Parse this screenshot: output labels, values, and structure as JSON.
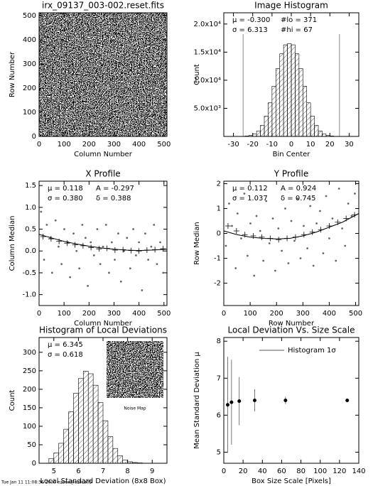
{
  "chart_data": [
    {
      "type": "image",
      "title": "irx_09137_003-002.reset.fits",
      "xlabel": "Column Number",
      "ylabel": "Row Number",
      "xlim": [
        0,
        512
      ],
      "ylim": [
        0,
        512
      ],
      "xticks": [
        0,
        100,
        200,
        300,
        400,
        500
      ],
      "yticks": [
        0,
        100,
        200,
        300,
        400,
        500
      ]
    },
    {
      "type": "histogram",
      "title": "Image Histogram",
      "xlabel": "Bin Center",
      "ylabel": "Count",
      "annotations": [
        "μ = -0.300",
        "#lo = 371",
        "σ = 6.313",
        "#hi = 67"
      ],
      "xlim": [
        -35,
        35
      ],
      "ylim": [
        0,
        22000
      ],
      "xticks": [
        -30,
        -20,
        -10,
        0,
        10,
        20,
        30
      ],
      "yticks": [
        {
          "value": 5000,
          "label": "5.0x10³"
        },
        {
          "value": 10000,
          "label": "1.0x10⁴"
        },
        {
          "value": 15000,
          "label": "1.5x10⁴"
        },
        {
          "value": 20000,
          "label": "2.0x10⁴"
        }
      ],
      "bins": [
        -32,
        -30,
        -28,
        -26,
        -24,
        -22,
        -20,
        -18,
        -16,
        -14,
        -12,
        -10,
        -8,
        -6,
        -4,
        -2,
        0,
        2,
        4,
        6,
        8,
        10,
        12,
        14,
        16,
        18,
        20,
        22,
        24,
        26,
        28,
        30,
        32
      ],
      "values": [
        0,
        1,
        5,
        20,
        70,
        180,
        440,
        980,
        1990,
        3620,
        5980,
        8930,
        12060,
        14700,
        16300,
        16500,
        16300,
        14700,
        12060,
        8930,
        5980,
        3620,
        1990,
        980,
        440,
        180,
        70,
        20,
        5,
        1,
        0,
        0
      ],
      "vlines": [
        -25,
        25
      ]
    },
    {
      "type": "scatter",
      "title": "X Profile",
      "xlabel": "Column Number",
      "ylabel": "Column Median",
      "annotations": [
        "μ = 0.118",
        "A = -0.297",
        "σ = 0.380",
        "δ = 0.388"
      ],
      "xlim": [
        0,
        512
      ],
      "ylim": [
        -1.25,
        1.6
      ],
      "xticks": [
        0,
        100,
        200,
        300,
        400,
        500
      ],
      "yticks": [
        {
          "value": -1,
          "label": "-1.0"
        },
        -0.5,
        {
          "value": 0,
          "label": "0.0"
        },
        0.5,
        {
          "value": 1,
          "label": "1.0"
        },
        1.5
      ],
      "series": [
        {
          "style": "dot",
          "x": [
            8,
            20,
            31,
            45,
            52,
            66,
            78,
            90,
            101,
            115,
            124,
            138,
            150,
            161,
            173,
            186,
            195,
            207,
            220,
            233,
            245,
            256,
            268,
            280,
            291,
            303,
            317,
            328,
            340,
            352,
            365,
            377,
            388,
            400,
            412,
            425,
            437,
            449,
            460,
            472,
            485,
            497
          ],
          "values": [
            0.9,
            -0.2,
            0.6,
            0.3,
            -0.5,
            0.7,
            0.1,
            -0.3,
            0.5,
            0.2,
            -0.6,
            0.4,
            0.0,
            -0.4,
            0.6,
            0.3,
            -0.8,
            0.2,
            -0.1,
            0.5,
            -0.3,
            0.1,
            0.6,
            -0.5,
            0.2,
            -0.2,
            0.4,
            -0.7,
            0.0,
            0.3,
            -0.4,
            0.5,
            -0.1,
            0.2,
            -0.9,
            0.4,
            -0.2,
            0.1,
            0.6,
            -0.3,
            0.2,
            -0.5
          ]
        },
        {
          "style": "cross",
          "x": [
            16,
            48,
            80,
            112,
            144,
            176,
            208,
            240,
            272,
            304,
            336,
            368,
            400,
            432,
            464,
            496
          ],
          "values": [
            0.33,
            0.28,
            0.22,
            0.18,
            0.14,
            0.12,
            0.08,
            0.05,
            0.06,
            0.02,
            0.03,
            0.01,
            0.0,
            0.02,
            0.03,
            0.05
          ]
        },
        {
          "style": "line",
          "x": [
            0,
            50,
            100,
            150,
            200,
            250,
            300,
            350,
            400,
            450,
            512
          ],
          "values": [
            0.38,
            0.3,
            0.22,
            0.16,
            0.11,
            0.07,
            0.04,
            0.02,
            0.01,
            0.02,
            0.04
          ]
        }
      ]
    },
    {
      "type": "scatter",
      "title": "Y Profile",
      "xlabel": "Row Number",
      "ylabel": "Row Median",
      "annotations": [
        "μ = 0.112",
        "A = 0.924",
        "σ = 1.037",
        "δ = 0.745"
      ],
      "xlim": [
        0,
        512
      ],
      "ylim": [
        -2.9,
        2.1
      ],
      "xticks": [
        0,
        100,
        200,
        300,
        400,
        500
      ],
      "yticks": [
        -2,
        -1,
        0,
        1,
        2
      ],
      "series": [
        {
          "style": "dot",
          "x": [
            8,
            20,
            31,
            45,
            52,
            66,
            78,
            90,
            101,
            115,
            124,
            138,
            150,
            161,
            173,
            186,
            195,
            207,
            220,
            233,
            245,
            256,
            268,
            280,
            291,
            303,
            317,
            328,
            340,
            352,
            365,
            377,
            388,
            400,
            412,
            425,
            437,
            449,
            460,
            472,
            485,
            497
          ],
          "values": [
            -0.5,
            1.2,
            0.3,
            -1.4,
            0.8,
            -0.2,
            1.6,
            -0.9,
            0.4,
            -1.7,
            0.7,
            0.1,
            -1.1,
            1.3,
            -0.4,
            0.6,
            -1.5,
            0.2,
            -0.7,
            1.0,
            -1.2,
            0.5,
            -0.3,
            1.4,
            -1.0,
            0.3,
            -0.6,
            1.1,
            -1.3,
            0.4,
            0.9,
            -0.8,
            1.5,
            -0.2,
            0.6,
            -1.1,
            1.8,
            0.2,
            -0.5,
            1.2,
            0.7,
            1.6
          ]
        },
        {
          "style": "cross",
          "x": [
            16,
            48,
            80,
            112,
            144,
            176,
            208,
            240,
            272,
            304,
            336,
            368,
            400,
            432,
            464,
            496
          ],
          "values": [
            0.3,
            0.1,
            -0.05,
            -0.1,
            -0.15,
            -0.2,
            -0.25,
            -0.2,
            -0.15,
            -0.05,
            0.05,
            0.15,
            0.3,
            0.45,
            0.6,
            0.75
          ]
        },
        {
          "style": "line",
          "x": [
            0,
            50,
            100,
            150,
            200,
            250,
            300,
            350,
            400,
            450,
            512
          ],
          "values": [
            0.1,
            -0.05,
            -0.15,
            -0.2,
            -0.22,
            -0.2,
            -0.1,
            0.05,
            0.25,
            0.45,
            0.8
          ]
        }
      ]
    },
    {
      "type": "histogram",
      "title": "Histogram of Local Deviations",
      "xlabel": "Local Standard Deviation (8x8 Box)",
      "ylabel": "Count",
      "annotations": [
        "μ = 6.345",
        "σ = 0.618"
      ],
      "inset": "Noise Map",
      "xlim": [
        4.4,
        9.6
      ],
      "ylim": [
        0,
        340
      ],
      "xticks": [
        5,
        6,
        7,
        8,
        9
      ],
      "yticks": [
        0,
        50,
        100,
        150,
        200,
        250,
        300
      ],
      "bins": [
        4.8,
        5.0,
        5.2,
        5.4,
        5.6,
        5.8,
        6.0,
        6.2,
        6.4,
        6.6,
        6.8,
        7.0,
        7.2,
        7.4,
        7.6,
        7.8,
        8.0,
        8.2,
        8.4,
        8.6
      ],
      "values": [
        13,
        28,
        54,
        92,
        139,
        189,
        229,
        249,
        242,
        211,
        164,
        115,
        72,
        40,
        20,
        9,
        4,
        2,
        1
      ]
    },
    {
      "type": "errorbar",
      "title": "Local Deviation Vs. Size Scale",
      "xlabel": "Box Size Scale [Pixels]",
      "ylabel": "Mean Standard Deviation μ",
      "xlim": [
        0,
        140
      ],
      "ylim": [
        4.7,
        8.1
      ],
      "xticks": [
        0,
        20,
        40,
        60,
        80,
        100,
        120,
        140
      ],
      "yticks": [
        5,
        6,
        7,
        8
      ],
      "series": [
        {
          "name": "Histogram 1σ",
          "x": [
            4,
            8,
            16,
            32,
            64,
            128
          ],
          "values": [
            6.28,
            6.35,
            6.38,
            6.4,
            6.4,
            6.4
          ],
          "errors": [
            1.3,
            1.15,
            0.65,
            0.3,
            0.1,
            0.05
          ]
        }
      ]
    }
  ],
  "footer": "Tue Jan 11 11:08:36 2000 ezoev@ezlica05"
}
